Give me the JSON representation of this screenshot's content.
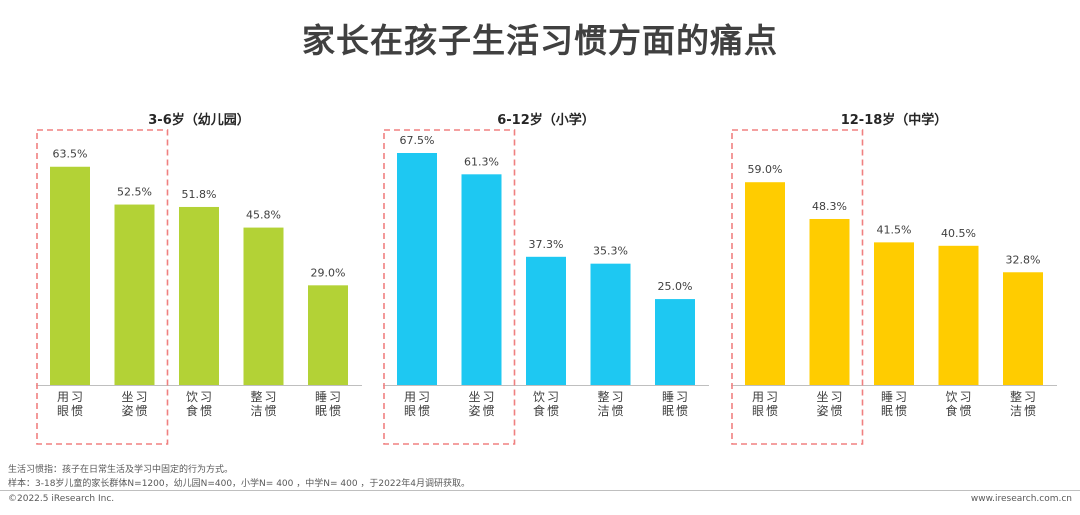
{
  "title": "家长在孩子生活习惯方面的痛点",
  "chart_data": [
    {
      "type": "bar",
      "title": "3-6岁（幼儿园）",
      "categories": [
        "用眼习惯",
        "坐姿习惯",
        "饮食习惯",
        "整洁习惯",
        "睡眠习惯"
      ],
      "values": [
        63.5,
        52.5,
        51.8,
        45.8,
        29.0
      ],
      "value_labels": [
        "63.5%",
        "52.5%",
        "51.8%",
        "45.8%",
        "29.0%"
      ],
      "color": "#b3d236",
      "highlighted": [
        0,
        1
      ],
      "ylim": [
        0,
        70
      ]
    },
    {
      "type": "bar",
      "title": "6-12岁（小学）",
      "categories": [
        "用眼习惯",
        "坐姿习惯",
        "饮食习惯",
        "整洁习惯",
        "睡眠习惯"
      ],
      "values": [
        67.5,
        61.3,
        37.3,
        35.3,
        25.0
      ],
      "value_labels": [
        "67.5%",
        "61.3%",
        "37.3%",
        "35.3%",
        "25.0%"
      ],
      "color": "#1ec8f2",
      "highlighted": [
        0,
        1
      ],
      "ylim": [
        0,
        70
      ]
    },
    {
      "type": "bar",
      "title": "12-18岁（中学）",
      "categories": [
        "用眼习惯",
        "坐姿习惯",
        "睡眠习惯",
        "饮食习惯",
        "整洁习惯"
      ],
      "values": [
        59.0,
        48.3,
        41.5,
        40.5,
        32.8
      ],
      "value_labels": [
        "59.0%",
        "48.3%",
        "41.5%",
        "40.5%",
        "32.8%"
      ],
      "color": "#ffcc00",
      "highlighted": [
        0,
        1
      ],
      "ylim": [
        0,
        70
      ]
    }
  ],
  "notes": {
    "definition": "生活习惯指：孩子在日常生活及学习中固定的行为方式。",
    "sample": "样本：3-18岁儿童的家长群体N=1200，幼儿园N=400，小学N= 400 ，中学N= 400 ，于2022年4月调研获取。"
  },
  "footer": {
    "copyright": "©2022.5 iResearch Inc.",
    "website": "www.iresearch.com.cn"
  }
}
